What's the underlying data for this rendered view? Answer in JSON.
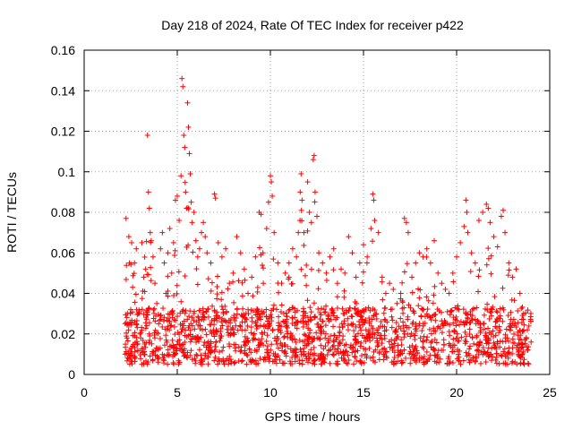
{
  "chart_data": {
    "type": "scatter",
    "title": "Day 218 of 2024, Rate Of TEC Index for receiver p422",
    "xlabel": "GPS time / hours",
    "ylabel": "ROTI / TECUs",
    "xlim": [
      0,
      25
    ],
    "ylim": [
      0,
      0.16
    ],
    "xticks": [
      0,
      5,
      10,
      15,
      20,
      25
    ],
    "xtick_labels": [
      "0",
      "5",
      "10",
      "15",
      "20",
      "25"
    ],
    "yticks": [
      0,
      0.02,
      0.04,
      0.06,
      0.08,
      0.1,
      0.12,
      0.14,
      0.16
    ],
    "ytick_labels": [
      "0",
      "0.02",
      "0.04",
      "0.06",
      "0.08",
      "0.1",
      "0.12",
      "0.14",
      "0.16"
    ],
    "grid": true,
    "marker": "+",
    "color": "#ff0000",
    "series": [
      {
        "name": "ROTI",
        "points": [
          [
            2.2,
            0.01
          ],
          [
            2.25,
            0.077
          ],
          [
            2.3,
            0.018
          ],
          [
            2.35,
            0.025
          ],
          [
            2.4,
            0.068
          ],
          [
            2.45,
            0.012
          ],
          [
            2.5,
            0.032
          ],
          [
            2.55,
            0.065
          ],
          [
            2.6,
            0.043
          ],
          [
            2.7,
            0.055
          ],
          [
            2.8,
            0.062
          ],
          [
            2.9,
            0.03
          ],
          [
            3.0,
            0.02
          ],
          [
            3.1,
            0.065
          ],
          [
            3.2,
            0.048
          ],
          [
            3.3,
            0.052
          ],
          [
            3.4,
            0.118
          ],
          [
            3.45,
            0.09
          ],
          [
            3.5,
            0.082
          ],
          [
            3.55,
            0.07
          ],
          [
            3.6,
            0.066
          ],
          [
            3.7,
            0.058
          ],
          [
            3.8,
            0.045
          ],
          [
            3.9,
            0.035
          ],
          [
            4.0,
            0.025
          ],
          [
            4.1,
            0.062
          ],
          [
            4.2,
            0.07
          ],
          [
            4.3,
            0.055
          ],
          [
            4.4,
            0.04
          ],
          [
            4.5,
            0.06
          ],
          [
            4.6,
            0.072
          ],
          [
            4.7,
            0.05
          ],
          [
            4.8,
            0.065
          ],
          [
            4.9,
            0.086
          ],
          [
            5.0,
            0.088
          ],
          [
            5.1,
            0.076
          ],
          [
            5.2,
            0.098
          ],
          [
            5.25,
            0.146
          ],
          [
            5.3,
            0.142
          ],
          [
            5.35,
            0.118
          ],
          [
            5.4,
            0.112
          ],
          [
            5.45,
            0.09
          ],
          [
            5.5,
            0.082
          ],
          [
            5.55,
            0.134
          ],
          [
            5.6,
            0.122
          ],
          [
            5.65,
            0.109
          ],
          [
            5.7,
            0.099
          ],
          [
            5.75,
            0.085
          ],
          [
            5.8,
            0.075
          ],
          [
            5.9,
            0.08
          ],
          [
            6.0,
            0.066
          ],
          [
            6.1,
            0.058
          ],
          [
            6.2,
            0.062
          ],
          [
            6.3,
            0.07
          ],
          [
            6.4,
            0.075
          ],
          [
            6.5,
            0.068
          ],
          [
            6.6,
            0.06
          ],
          [
            6.8,
            0.055
          ],
          [
            7.0,
            0.089
          ],
          [
            7.05,
            0.087
          ],
          [
            7.2,
            0.065
          ],
          [
            7.4,
            0.058
          ],
          [
            7.6,
            0.062
          ],
          [
            7.8,
            0.045
          ],
          [
            8.0,
            0.05
          ],
          [
            8.2,
            0.068
          ],
          [
            8.4,
            0.06
          ],
          [
            8.6,
            0.052
          ],
          [
            8.8,
            0.04
          ],
          [
            9.0,
            0.048
          ],
          [
            9.2,
            0.058
          ],
          [
            9.4,
            0.08
          ],
          [
            9.5,
            0.079
          ],
          [
            9.6,
            0.06
          ],
          [
            9.8,
            0.072
          ],
          [
            9.9,
            0.085
          ],
          [
            10.0,
            0.098
          ],
          [
            10.05,
            0.095
          ],
          [
            10.1,
            0.088
          ],
          [
            10.2,
            0.07
          ],
          [
            10.4,
            0.055
          ],
          [
            10.6,
            0.045
          ],
          [
            10.8,
            0.05
          ],
          [
            11.0,
            0.055
          ],
          [
            11.2,
            0.062
          ],
          [
            11.4,
            0.058
          ],
          [
            11.5,
            0.07
          ],
          [
            11.6,
            0.09
          ],
          [
            11.65,
            0.099
          ],
          [
            11.7,
            0.086
          ],
          [
            11.8,
            0.07
          ],
          [
            12.0,
            0.095
          ],
          [
            12.1,
            0.08
          ],
          [
            12.2,
            0.075
          ],
          [
            12.3,
            0.106
          ],
          [
            12.35,
            0.108
          ],
          [
            12.4,
            0.09
          ],
          [
            12.5,
            0.078
          ],
          [
            12.6,
            0.06
          ],
          [
            12.8,
            0.055
          ],
          [
            13.0,
            0.05
          ],
          [
            13.2,
            0.058
          ],
          [
            13.4,
            0.062
          ],
          [
            13.6,
            0.045
          ],
          [
            13.8,
            0.052
          ],
          [
            14.0,
            0.05
          ],
          [
            14.2,
            0.068
          ],
          [
            14.4,
            0.06
          ],
          [
            14.6,
            0.048
          ],
          [
            14.8,
            0.055
          ],
          [
            15.0,
            0.064
          ],
          [
            15.2,
            0.058
          ],
          [
            15.4,
            0.072
          ],
          [
            15.5,
            0.089
          ],
          [
            15.55,
            0.086
          ],
          [
            15.6,
            0.076
          ],
          [
            15.8,
            0.07
          ],
          [
            16.0,
            0.048
          ],
          [
            16.2,
            0.04
          ],
          [
            16.4,
            0.045
          ],
          [
            16.6,
            0.042
          ],
          [
            16.8,
            0.035
          ],
          [
            17.0,
            0.04
          ],
          [
            17.2,
            0.077
          ],
          [
            17.3,
            0.075
          ],
          [
            17.4,
            0.07
          ],
          [
            17.6,
            0.048
          ],
          [
            17.8,
            0.055
          ],
          [
            18.0,
            0.06
          ],
          [
            18.2,
            0.058
          ],
          [
            18.4,
            0.062
          ],
          [
            18.6,
            0.055
          ],
          [
            18.8,
            0.066
          ],
          [
            19.0,
            0.05
          ],
          [
            19.2,
            0.045
          ],
          [
            19.4,
            0.042
          ],
          [
            19.6,
            0.04
          ],
          [
            19.8,
            0.05
          ],
          [
            20.0,
            0.058
          ],
          [
            20.2,
            0.065
          ],
          [
            20.4,
            0.073
          ],
          [
            20.5,
            0.086
          ],
          [
            20.55,
            0.08
          ],
          [
            20.6,
            0.07
          ],
          [
            20.8,
            0.06
          ],
          [
            21.0,
            0.055
          ],
          [
            21.2,
            0.076
          ],
          [
            21.4,
            0.08
          ],
          [
            21.6,
            0.084
          ],
          [
            21.7,
            0.082
          ],
          [
            21.8,
            0.075
          ],
          [
            22.0,
            0.068
          ],
          [
            22.2,
            0.063
          ],
          [
            22.4,
            0.078
          ],
          [
            22.5,
            0.081
          ],
          [
            22.6,
            0.07
          ],
          [
            22.8,
            0.055
          ],
          [
            23.0,
            0.048
          ],
          [
            23.2,
            0.052
          ],
          [
            23.4,
            0.04
          ],
          [
            23.6,
            0.03
          ],
          [
            23.8,
            0.022
          ],
          [
            24.0,
            0.016
          ]
        ],
        "dense_band": {
          "x_range": [
            2.2,
            24.0
          ],
          "y_floor": 0.005,
          "y_typical": 0.02
        }
      }
    ]
  }
}
